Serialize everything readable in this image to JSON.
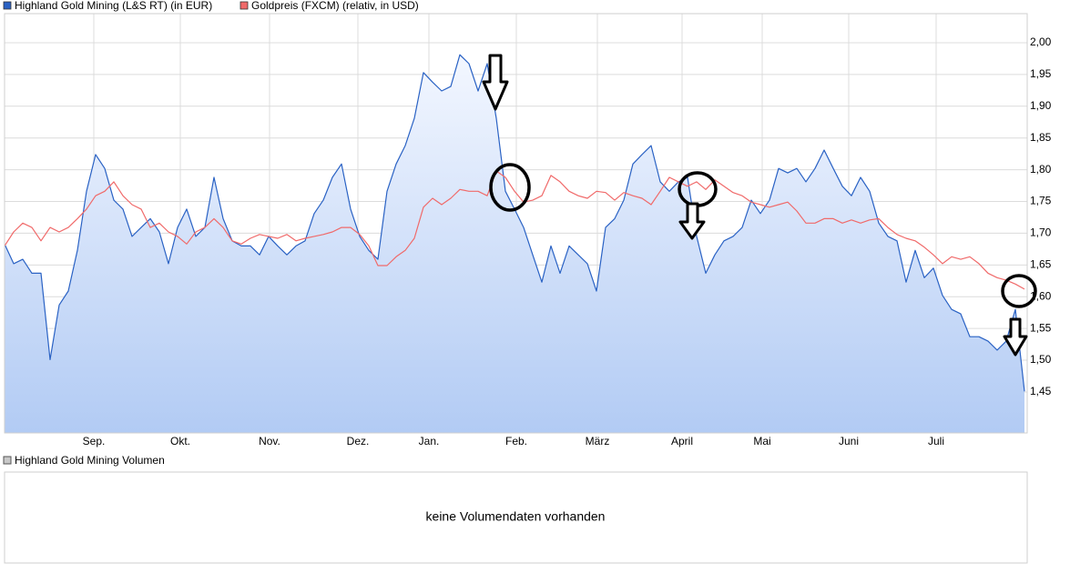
{
  "chart_data": {
    "type": "line",
    "series": [
      {
        "name": "Highland Gold Mining (L&S RT) (in EUR)",
        "color": "#2a62c4",
        "fill": true,
        "values": [
          1.683,
          1.652,
          1.659,
          1.637,
          1.637,
          1.501,
          1.587,
          1.609,
          1.673,
          1.766,
          1.824,
          1.802,
          1.752,
          1.738,
          1.695,
          1.709,
          1.723,
          1.702,
          1.652,
          1.709,
          1.738,
          1.695,
          1.709,
          1.788,
          1.723,
          1.688,
          1.68,
          1.68,
          1.666,
          1.695,
          1.68,
          1.666,
          1.68,
          1.688,
          1.731,
          1.752,
          1.788,
          1.809,
          1.738,
          1.695,
          1.673,
          1.659,
          1.766,
          1.809,
          1.838,
          1.881,
          1.953,
          1.938,
          1.924,
          1.931,
          1.981,
          1.967,
          1.924,
          1.967,
          1.881,
          1.766,
          1.738,
          1.709,
          1.666,
          1.623,
          1.68,
          1.637,
          1.68,
          1.666,
          1.652,
          1.609,
          1.709,
          1.723,
          1.752,
          1.809,
          1.824,
          1.838,
          1.781,
          1.766,
          1.781,
          1.788,
          1.695,
          1.637,
          1.666,
          1.688,
          1.695,
          1.709,
          1.752,
          1.731,
          1.752,
          1.802,
          1.795,
          1.802,
          1.781,
          1.802,
          1.831,
          1.802,
          1.774,
          1.759,
          1.788,
          1.766,
          1.716,
          1.695,
          1.688,
          1.623,
          1.673,
          1.63,
          1.645,
          1.602,
          1.58,
          1.573,
          1.537,
          1.537,
          1.53,
          1.516,
          1.53,
          1.58,
          1.451
        ]
      },
      {
        "name": "Goldpreis (FXCM) (relativ, in USD)",
        "color": "#f06a6a",
        "fill": false,
        "values": [
          1.68,
          1.702,
          1.716,
          1.709,
          1.688,
          1.709,
          1.702,
          1.709,
          1.723,
          1.738,
          1.759,
          1.766,
          1.781,
          1.759,
          1.745,
          1.738,
          1.709,
          1.716,
          1.702,
          1.695,
          1.683,
          1.702,
          1.709,
          1.723,
          1.709,
          1.688,
          1.683,
          1.692,
          1.698,
          1.695,
          1.692,
          1.698,
          1.688,
          1.692,
          1.695,
          1.698,
          1.702,
          1.709,
          1.709,
          1.698,
          1.68,
          1.649,
          1.649,
          1.663,
          1.673,
          1.692,
          1.741,
          1.755,
          1.745,
          1.755,
          1.769,
          1.766,
          1.766,
          1.759,
          1.798,
          1.788,
          1.766,
          1.749,
          1.752,
          1.759,
          1.791,
          1.781,
          1.766,
          1.759,
          1.755,
          1.766,
          1.764,
          1.752,
          1.764,
          1.759,
          1.755,
          1.745,
          1.766,
          1.788,
          1.781,
          1.774,
          1.781,
          1.769,
          1.784,
          1.774,
          1.764,
          1.759,
          1.749,
          1.745,
          1.741,
          1.745,
          1.749,
          1.735,
          1.716,
          1.716,
          1.723,
          1.723,
          1.716,
          1.721,
          1.716,
          1.721,
          1.723,
          1.709,
          1.698,
          1.692,
          1.688,
          1.678,
          1.666,
          1.652,
          1.663,
          1.659,
          1.663,
          1.652,
          1.637,
          1.63,
          1.626,
          1.62,
          1.612
        ]
      }
    ],
    "xlim": [
      0,
      112.3
    ],
    "xticks": [
      {
        "value": 9.8,
        "label": "Sep."
      },
      {
        "value": 19.3,
        "label": "Okt."
      },
      {
        "value": 29.1,
        "label": "Nov."
      },
      {
        "value": 38.8,
        "label": "Dez."
      },
      {
        "value": 46.6,
        "label": "Jan."
      },
      {
        "value": 56.2,
        "label": "Feb."
      },
      {
        "value": 65.1,
        "label": "März"
      },
      {
        "value": 74.4,
        "label": "April"
      },
      {
        "value": 83.2,
        "label": "Mai"
      },
      {
        "value": 92.7,
        "label": "Juni"
      },
      {
        "value": 102.3,
        "label": "Juli"
      }
    ],
    "ylim": [
      1.3855,
      2.0458
    ],
    "yticks": [
      {
        "value": 1.45,
        "label": "1,45"
      },
      {
        "value": 1.5,
        "label": "1,50"
      },
      {
        "value": 1.55,
        "label": "1,55"
      },
      {
        "value": 1.6,
        "label": "1,60"
      },
      {
        "value": 1.65,
        "label": "1,65"
      },
      {
        "value": 1.7,
        "label": "1,70"
      },
      {
        "value": 1.75,
        "label": "1,75"
      },
      {
        "value": 1.8,
        "label": "1,80"
      },
      {
        "value": 1.85,
        "label": "1,85"
      },
      {
        "value": 1.9,
        "label": "1,90"
      },
      {
        "value": 1.95,
        "label": "1,95"
      },
      {
        "value": 2.0,
        "label": "2,00"
      }
    ],
    "grid": true
  },
  "volume_panel": {
    "legend": "Highland Gold Mining Volumen",
    "message": "keine Volumendaten vorhanden"
  }
}
